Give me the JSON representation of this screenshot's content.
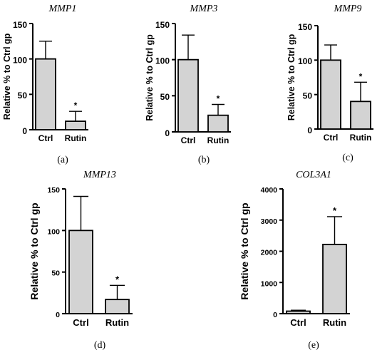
{
  "chart_data": [
    {
      "type": "bar",
      "panel": "(a)",
      "title": "MMP1",
      "ylabel": "Relative % to Ctrl gp",
      "categories": [
        "Ctrl",
        "Rutin"
      ],
      "values": [
        100,
        12
      ],
      "errors": [
        25,
        14
      ],
      "significance": [
        "",
        "*"
      ],
      "ylim": [
        0,
        150
      ],
      "yticks": [
        0,
        50,
        100,
        150
      ]
    },
    {
      "type": "bar",
      "panel": "(b)",
      "title": "MMP3",
      "ylabel": "Relative % to Ctrl gp",
      "categories": [
        "Ctrl",
        "Rutin"
      ],
      "values": [
        100,
        23
      ],
      "errors": [
        34,
        15
      ],
      "significance": [
        "",
        "*"
      ],
      "ylim": [
        0,
        150
      ],
      "yticks": [
        0,
        50,
        100,
        150
      ]
    },
    {
      "type": "bar",
      "panel": "(c)",
      "title": "MMP9",
      "ylabel": "Relative % to Ctrl gp",
      "categories": [
        "Ctrl",
        "Rutin"
      ],
      "values": [
        100,
        40
      ],
      "errors": [
        22,
        28
      ],
      "significance": [
        "",
        "*"
      ],
      "ylim": [
        0,
        150
      ],
      "yticks": [
        0,
        50,
        100,
        150
      ]
    },
    {
      "type": "bar",
      "panel": "(d)",
      "title": "MMP13",
      "ylabel": "Relative % to Ctrl gp",
      "categories": [
        "Ctrl",
        "Rutin"
      ],
      "values": [
        100,
        17
      ],
      "errors": [
        41,
        17
      ],
      "significance": [
        "",
        "*"
      ],
      "ylim": [
        0,
        150
      ],
      "yticks": [
        0,
        50,
        100,
        150
      ]
    },
    {
      "type": "bar",
      "panel": "(e)",
      "title": "COL3A1",
      "ylabel": "Relative % to Ctrl gp",
      "categories": [
        "Ctrl",
        "Rutin"
      ],
      "values": [
        80,
        2220
      ],
      "errors": [
        30,
        890
      ],
      "significance": [
        "",
        "*"
      ],
      "ylim": [
        0,
        4000
      ],
      "yticks": [
        0,
        1000,
        2000,
        3000,
        4000
      ]
    }
  ]
}
